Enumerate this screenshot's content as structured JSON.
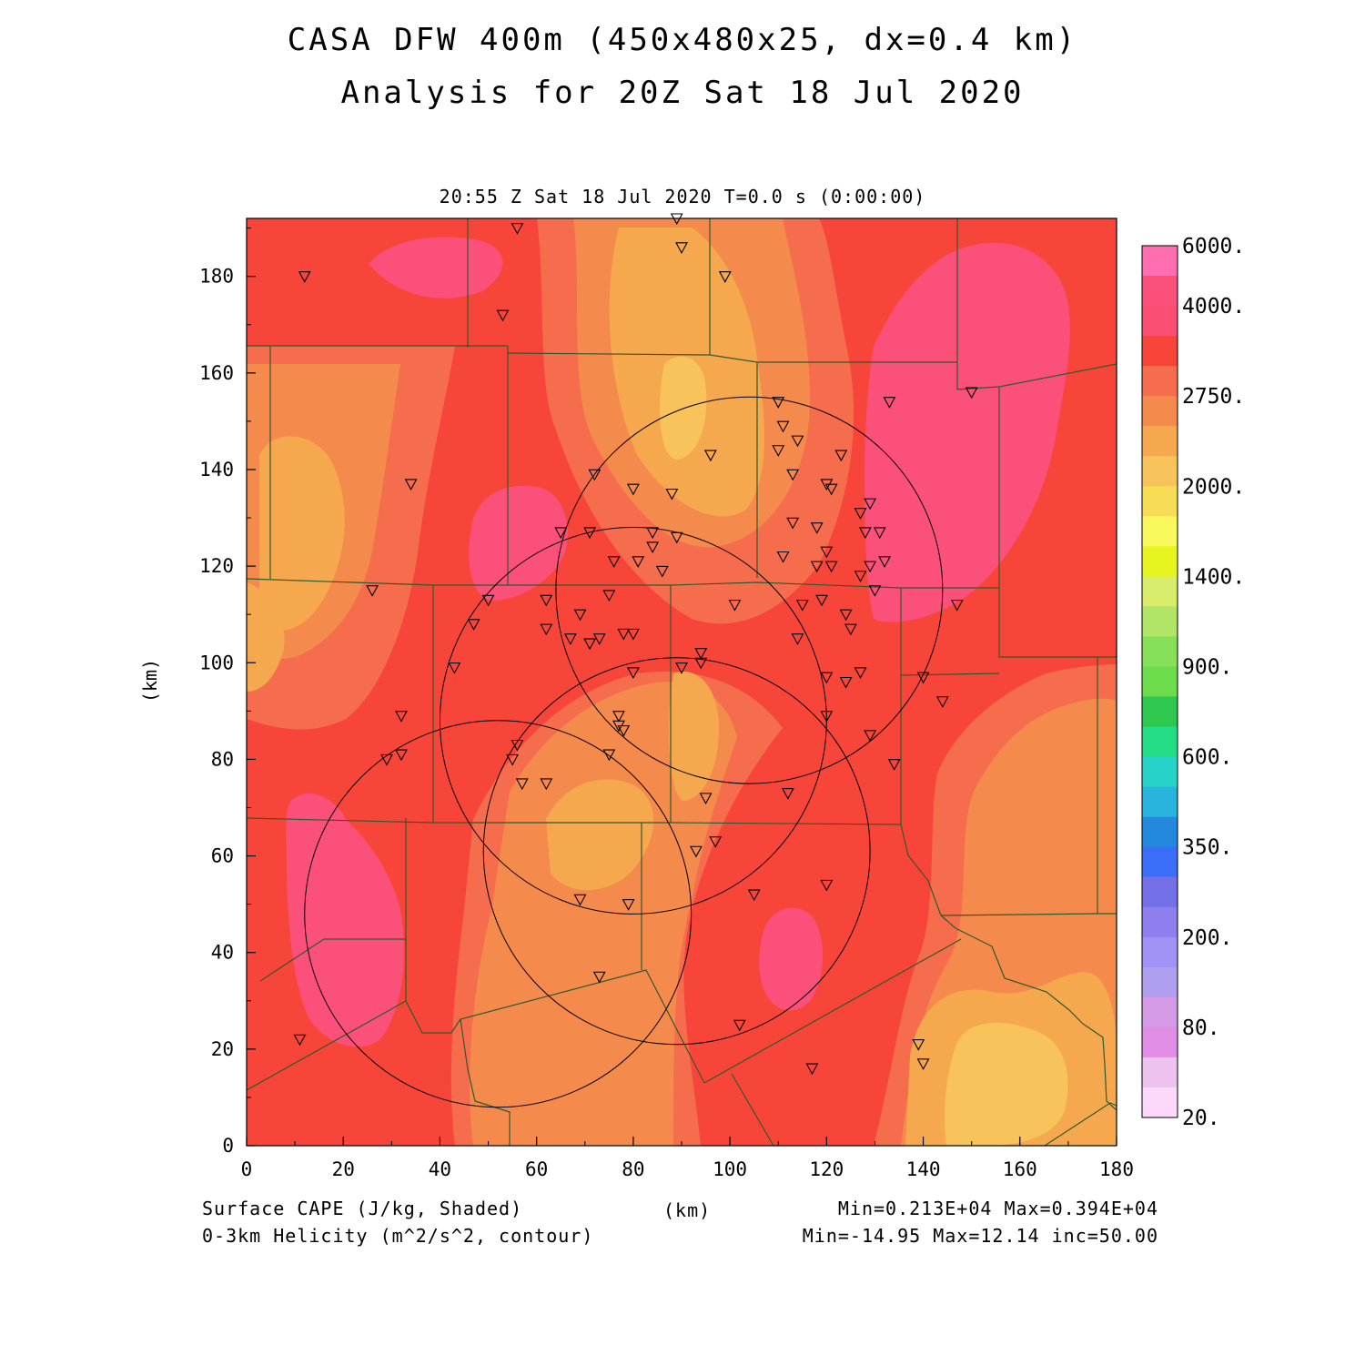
{
  "title": {
    "line1": "CASA DFW 400m (450x480x25, dx=0.4 km)",
    "line2": "Analysis for 20Z Sat 18 Jul 2020"
  },
  "subtitle": "20:55 Z Sat 18 Jul 2020   T=0.0 s (0:00:00)",
  "axes": {
    "x_label": "(km)",
    "y_label": "(km)",
    "x_range": [
      0,
      180
    ],
    "y_range": [
      0,
      192
    ],
    "x_ticks": [
      "0",
      "20",
      "40",
      "60",
      "80",
      "100",
      "120",
      "140",
      "160",
      "180"
    ],
    "y_ticks": [
      "0",
      "20",
      "40",
      "60",
      "80",
      "100",
      "120",
      "140",
      "160",
      "180"
    ]
  },
  "colorbar": {
    "labels": [
      "6000.",
      "4000.",
      "2750.",
      "2000.",
      "1400.",
      "900.",
      "600.",
      "350.",
      "200.",
      "80.",
      "20."
    ],
    "colors": [
      "#ff6eb0",
      "#fb507a",
      "#fa4f73",
      "#f8453a",
      "#f66d4d",
      "#f58a4d",
      "#f5a84e",
      "#f7c35a",
      "#f6dd55",
      "#f9f85d",
      "#e6f520",
      "#d7ec6b",
      "#b1e568",
      "#86e05a",
      "#6cdc4d",
      "#2ec84e",
      "#23dd86",
      "#27d3c9",
      "#29b4dd",
      "#2489dc",
      "#3a6ef9",
      "#7470e7",
      "#8d80ee",
      "#a193f5",
      "#b09eef",
      "#d49ae6",
      "#e38ee6",
      "#eec2ef",
      "#fcd8fb"
    ]
  },
  "footer": {
    "left1": "Surface CAPE (J/kg, Shaded)",
    "left2": "0-3km Helicity (m^2/s^2, contour)",
    "center": "(km)",
    "right1": "Min=0.213E+04 Max=0.394E+04",
    "right2": "Min=-14.95 Max=12.14 inc=50.00"
  },
  "radars": [
    {
      "center_km": [
        104,
        115
      ],
      "radius_km": 40
    },
    {
      "center_km": [
        80,
        88
      ],
      "radius_km": 40
    },
    {
      "center_km": [
        89,
        61
      ],
      "radius_km": 40
    },
    {
      "center_km": [
        52,
        48
      ],
      "radius_km": 40
    }
  ],
  "stations_km": [
    [
      89,
      192
    ],
    [
      56,
      190
    ],
    [
      90,
      186
    ],
    [
      12,
      180
    ],
    [
      99,
      180
    ],
    [
      53,
      172
    ],
    [
      150,
      156
    ],
    [
      133,
      154
    ],
    [
      110,
      154
    ],
    [
      111,
      149
    ],
    [
      114,
      146
    ],
    [
      110,
      144
    ],
    [
      123,
      143
    ],
    [
      96,
      143
    ],
    [
      113,
      139
    ],
    [
      72,
      139
    ],
    [
      34,
      137
    ],
    [
      120,
      137
    ],
    [
      121,
      136
    ],
    [
      80,
      136
    ],
    [
      88,
      135
    ],
    [
      129,
      133
    ],
    [
      127,
      131
    ],
    [
      65,
      127
    ],
    [
      71,
      127
    ],
    [
      84,
      127
    ],
    [
      113,
      129
    ],
    [
      118,
      128
    ],
    [
      128,
      127
    ],
    [
      131,
      127
    ],
    [
      89,
      126
    ],
    [
      84,
      124
    ],
    [
      120,
      123
    ],
    [
      111,
      122
    ],
    [
      76,
      121
    ],
    [
      81,
      121
    ],
    [
      121,
      120
    ],
    [
      118,
      120
    ],
    [
      129,
      120
    ],
    [
      132,
      121
    ],
    [
      86,
      119
    ],
    [
      127,
      118
    ],
    [
      26,
      115
    ],
    [
      130,
      115
    ],
    [
      50,
      113
    ],
    [
      62,
      113
    ],
    [
      75,
      114
    ],
    [
      101,
      112
    ],
    [
      115,
      112
    ],
    [
      147,
      112
    ],
    [
      119,
      113
    ],
    [
      124,
      110
    ],
    [
      69,
      110
    ],
    [
      47,
      108
    ],
    [
      125,
      107
    ],
    [
      62,
      107
    ],
    [
      78,
      106
    ],
    [
      80,
      106
    ],
    [
      73,
      105
    ],
    [
      67,
      105
    ],
    [
      71,
      104
    ],
    [
      114,
      105
    ],
    [
      94,
      102
    ],
    [
      94,
      100
    ],
    [
      43,
      99
    ],
    [
      90,
      99
    ],
    [
      80,
      98
    ],
    [
      127,
      98
    ],
    [
      120,
      97
    ],
    [
      124,
      96
    ],
    [
      140,
      97
    ],
    [
      144,
      92
    ],
    [
      32,
      89
    ],
    [
      77,
      89
    ],
    [
      77,
      87
    ],
    [
      78,
      86
    ],
    [
      120,
      89
    ],
    [
      129,
      85
    ],
    [
      32,
      81
    ],
    [
      29,
      80
    ],
    [
      75,
      81
    ],
    [
      55,
      80
    ],
    [
      56,
      83
    ],
    [
      134,
      79
    ],
    [
      57,
      75
    ],
    [
      62,
      75
    ],
    [
      112,
      73
    ],
    [
      95,
      72
    ],
    [
      97,
      63
    ],
    [
      93,
      61
    ],
    [
      120,
      54
    ],
    [
      105,
      52
    ],
    [
      69,
      51
    ],
    [
      79,
      50
    ],
    [
      73,
      35
    ],
    [
      102,
      25
    ],
    [
      11,
      22
    ],
    [
      139,
      21
    ],
    [
      140,
      17
    ],
    [
      117,
      16
    ]
  ]
}
